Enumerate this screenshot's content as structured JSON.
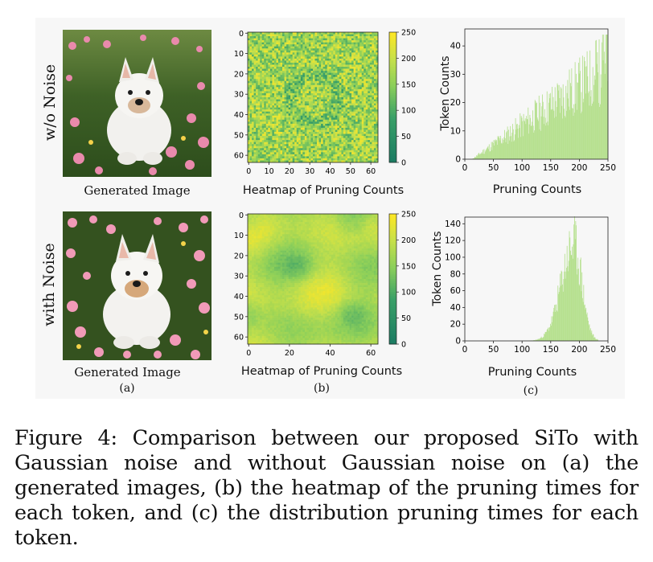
{
  "row_labels": {
    "top": "w/o Noise",
    "bottom": "with Noise"
  },
  "image_caption": "Generated Image",
  "heatmap_title": "Heatmap of Pruning Counts",
  "panel_labels": {
    "a": "(a)",
    "b": "(b)",
    "c": "(c)"
  },
  "figure_caption": "Figure 4: Comparison between our proposed SiTo with Gaussian noise and without Gaussian noise on (a) the generated images, (b) the heatmap of the pruning times for each token, and (c) the distribution pruning times for each token.",
  "colors": {
    "hist_bar": "#b6e08f",
    "cmap_low": "#1f8a6c",
    "cmap_mid": "#8ccf5a",
    "cmap_high": "#fde725"
  },
  "chart_data": [
    {
      "type": "heatmap",
      "name": "w/o Noise heatmap",
      "title": "Heatmap of Pruning Counts",
      "x_ticks": [
        "0",
        "10",
        "20",
        "30",
        "40",
        "50",
        "60"
      ],
      "y_ticks": [
        "0",
        "10",
        "20",
        "30",
        "40",
        "50",
        "60"
      ],
      "grid_size": 64,
      "value_range": [
        0,
        250
      ],
      "colorbar_ticks": [
        "0",
        "50",
        "100",
        "150",
        "200",
        "250"
      ],
      "pattern": "high-variance noisy, mean about 175"
    },
    {
      "type": "bar",
      "name": "w/o Noise histogram",
      "xlabel": "Pruning Counts",
      "ylabel": "Token Counts",
      "x_ticks": [
        "0",
        "50",
        "100",
        "150",
        "200",
        "250"
      ],
      "y_ticks": [
        "0",
        "10",
        "20",
        "30",
        "40"
      ],
      "xlim": [
        0,
        250
      ],
      "ylim": [
        0,
        46
      ],
      "distribution": "rising from ~0 near 15 to ~44 near 240",
      "peak": {
        "x": 240,
        "y": 44
      }
    },
    {
      "type": "heatmap",
      "name": "with Noise heatmap",
      "title": "Heatmap of Pruning Counts",
      "x_ticks": [
        "0",
        "20",
        "40",
        "60"
      ],
      "y_ticks": [
        "0",
        "10",
        "20",
        "30",
        "40",
        "50",
        "60"
      ],
      "grid_size": 64,
      "value_range": [
        0,
        250
      ],
      "colorbar_ticks": [
        "0",
        "50",
        "100",
        "150",
        "200",
        "250"
      ],
      "pattern": "smooth, mean about 180"
    },
    {
      "type": "bar",
      "name": "with Noise histogram",
      "xlabel": "Pruning Counts",
      "ylabel": "Token Counts",
      "x_ticks": [
        "0",
        "50",
        "100",
        "150",
        "200",
        "250"
      ],
      "y_ticks": [
        "0",
        "20",
        "40",
        "60",
        "80",
        "100",
        "120",
        "140"
      ],
      "xlim": [
        0,
        250
      ],
      "ylim": [
        0,
        148
      ],
      "distribution": "peaked near 190, spread from 100 to 230",
      "peak": {
        "x": 190,
        "y": 143
      }
    }
  ]
}
